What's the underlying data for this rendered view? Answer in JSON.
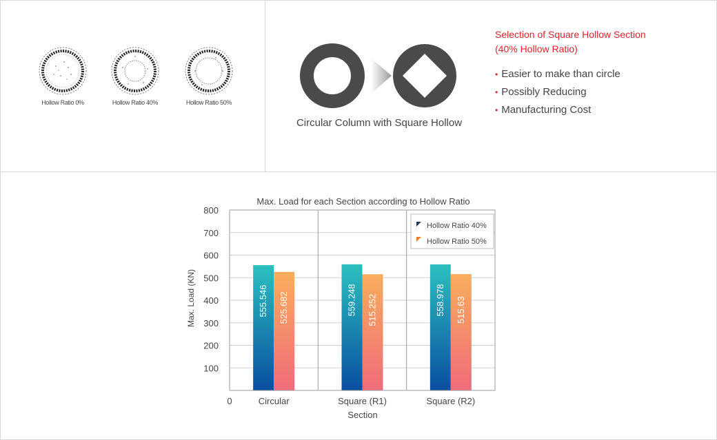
{
  "sections": [
    {
      "label": "Hollow Ratio 0%",
      "hollow": 0
    },
    {
      "label": "Hollow Ratio 40%",
      "hollow": 0.4
    },
    {
      "label": "Hollow Ratio 50%",
      "hollow": 0.5
    }
  ],
  "concept": {
    "caption": "Circular Column with Square Hollow",
    "selection_title_line1": "Selection of Square Hollow Section",
    "selection_title_line2": "(40% Hollow Ratio)",
    "bullets": [
      "Easier to make than circle",
      "Possibly Reducing",
      "Manufacturing Cost"
    ]
  },
  "colors": {
    "accent_red": "#d9262e",
    "icon_dark": "#4a4a4a",
    "series_40_top": "#2bc0c0",
    "series_40_bottom": "#0a4fa0",
    "series_50_top": "#f9ad5c",
    "series_50_bottom": "#ef6b7a"
  },
  "chart_data": {
    "type": "bar",
    "title": "Max. Load for each Section according to Hollow Ratio",
    "xlabel": "Section",
    "ylabel": "Max. Load (KN)",
    "categories": [
      "Circular",
      "Square (R1)",
      "Square (R2)"
    ],
    "series": [
      {
        "name": "Hollow Ratio 40%",
        "values": [
          555.546,
          559.248,
          558.978
        ]
      },
      {
        "name": "Hollow Ratio 50%",
        "values": [
          525.682,
          515.252,
          515.63
        ]
      }
    ],
    "value_labels": [
      [
        "555.546",
        "559.248",
        "558.978"
      ],
      [
        "525.682",
        "515.252",
        "515.63"
      ]
    ],
    "ylim": [
      0,
      800
    ],
    "yticks": [
      100,
      200,
      300,
      400,
      500,
      600,
      700,
      800
    ],
    "zero_label": "0",
    "grid": true,
    "legend_position": "top-right"
  }
}
